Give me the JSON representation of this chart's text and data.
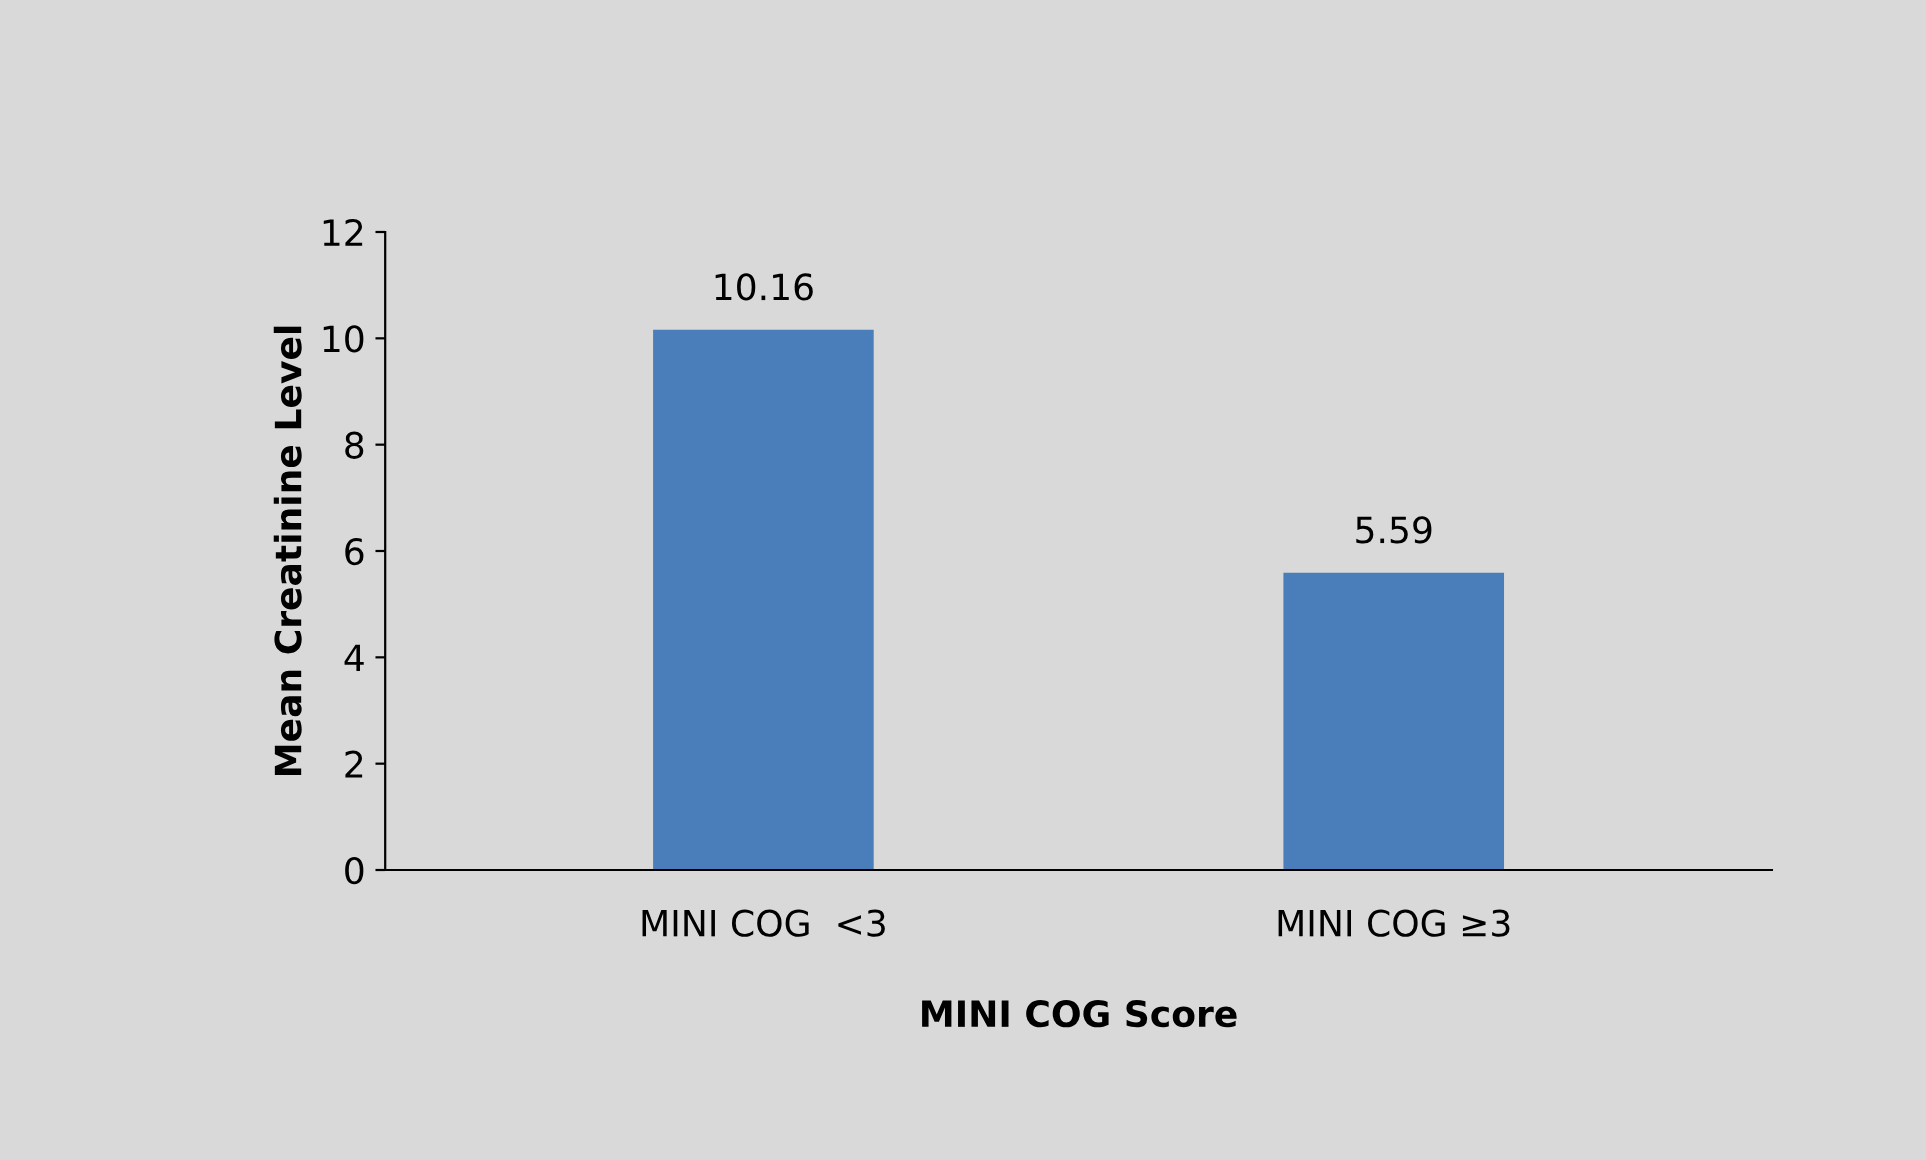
{
  "chart_data": {
    "type": "bar",
    "xlabel": "MINI COG Score",
    "ylabel": "Mean Creatinine Level",
    "categories": [
      "MINI COG  <3",
      "MINI COG ≥3"
    ],
    "values": [
      10.16,
      5.59
    ],
    "color": "#4a7ebb",
    "ylim": [
      0,
      12
    ],
    "yticks": [
      0,
      2,
      4,
      6,
      8,
      10,
      12
    ],
    "grid": false,
    "data_labels": true
  }
}
